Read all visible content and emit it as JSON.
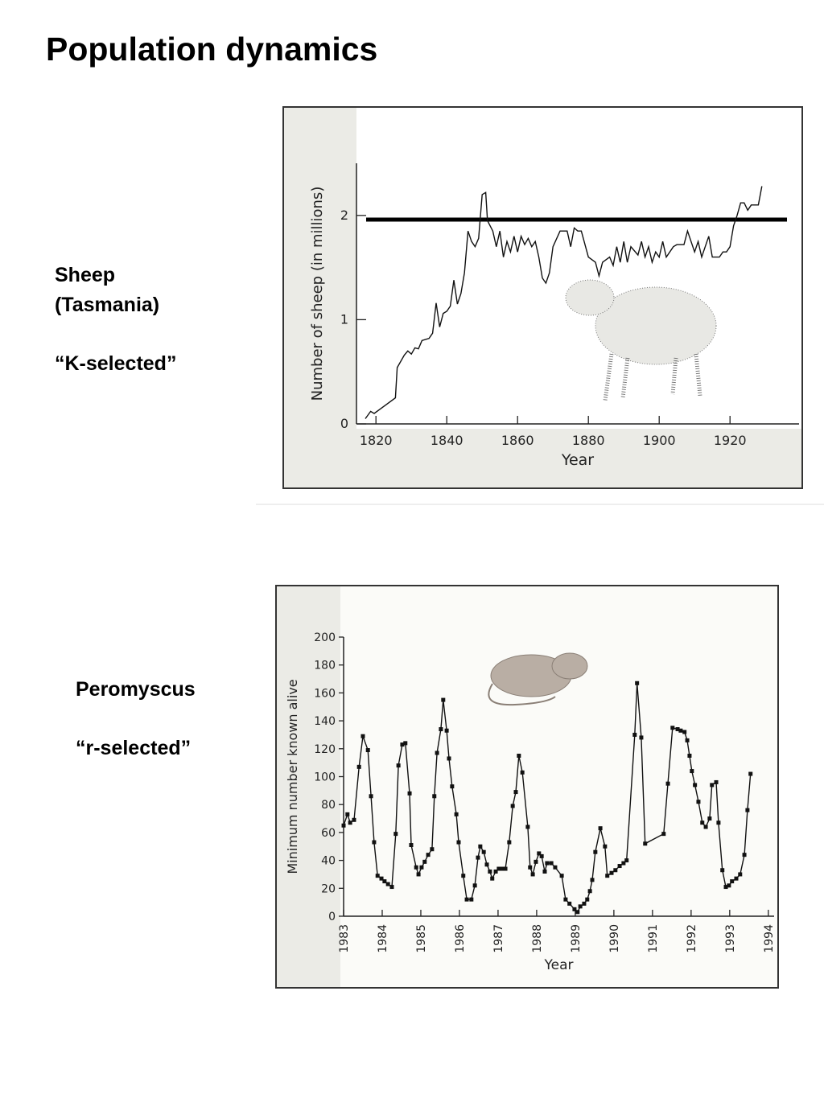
{
  "title": "Population dynamics",
  "panels": [
    {
      "label_lines": [
        "Sheep",
        "(Tasmania)"
      ],
      "note": "“K-selected”"
    },
    {
      "label_lines": [
        "Peromyscus"
      ],
      "note": "“r-selected”"
    }
  ],
  "chart_data": [
    {
      "type": "line",
      "xlabel": "Year",
      "ylabel": "Number of sheep (in millions)",
      "color": "#111111",
      "xlim": [
        1814.5,
        1939.5
      ],
      "ylim": [
        0,
        2.5
      ],
      "xticks": [
        1820,
        1840,
        1860,
        1880,
        1900,
        1920
      ],
      "yticks": [
        0,
        1,
        2
      ],
      "hline": 1.96,
      "x": [
        1817,
        1818.5,
        1819.5,
        1825.5,
        1826,
        1828,
        1829,
        1830,
        1831,
        1832,
        1833,
        1835,
        1836,
        1837,
        1838,
        1839,
        1840,
        1841,
        1842,
        1843,
        1844,
        1845,
        1846,
        1847,
        1848,
        1849,
        1850,
        1851,
        1851.5,
        1853,
        1854,
        1855,
        1856,
        1857,
        1858,
        1859,
        1860,
        1861,
        1862,
        1863,
        1864,
        1865,
        1866,
        1867,
        1868,
        1869,
        1870,
        1872,
        1874,
        1875,
        1876,
        1877,
        1878,
        1880,
        1882,
        1883,
        1884,
        1886,
        1887,
        1888,
        1889,
        1890,
        1891,
        1892,
        1894,
        1895,
        1896,
        1897,
        1898,
        1899,
        1900,
        1901,
        1902,
        1904,
        1905,
        1907,
        1908,
        1910,
        1911,
        1912,
        1914,
        1915,
        1917,
        1918,
        1919,
        1920,
        1921,
        1922,
        1923,
        1924,
        1925,
        1926,
        1927,
        1928,
        1929
      ],
      "values": [
        0.05,
        0.12,
        0.1,
        0.25,
        0.54,
        0.66,
        0.7,
        0.67,
        0.73,
        0.72,
        0.8,
        0.82,
        0.87,
        1.16,
        0.93,
        1.06,
        1.08,
        1.13,
        1.38,
        1.15,
        1.25,
        1.45,
        1.85,
        1.75,
        1.7,
        1.78,
        2.2,
        2.22,
        1.95,
        1.85,
        1.7,
        1.85,
        1.6,
        1.75,
        1.65,
        1.8,
        1.65,
        1.8,
        1.72,
        1.78,
        1.7,
        1.75,
        1.6,
        1.4,
        1.35,
        1.45,
        1.7,
        1.85,
        1.85,
        1.7,
        1.88,
        1.85,
        1.85,
        1.6,
        1.55,
        1.42,
        1.55,
        1.6,
        1.52,
        1.7,
        1.55,
        1.75,
        1.55,
        1.7,
        1.62,
        1.75,
        1.6,
        1.7,
        1.55,
        1.65,
        1.6,
        1.75,
        1.6,
        1.7,
        1.72,
        1.72,
        1.85,
        1.65,
        1.75,
        1.6,
        1.8,
        1.6,
        1.6,
        1.65,
        1.65,
        1.7,
        1.9,
        2.0,
        2.12,
        2.12,
        2.05,
        2.1,
        2.1,
        2.1,
        2.28
      ]
    },
    {
      "type": "line",
      "xlabel": "Year",
      "ylabel": "Minimum number known alive",
      "color": "#111111",
      "markers": "square",
      "xlim": [
        1983,
        1994.15
      ],
      "ylim": [
        0,
        200
      ],
      "xticks": [
        1983,
        1984,
        1985,
        1986,
        1987,
        1988,
        1989,
        1990,
        1991,
        1992,
        1993,
        1994
      ],
      "yticks": [
        0,
        20,
        40,
        60,
        80,
        100,
        120,
        140,
        160,
        180,
        200
      ],
      "x": [
        1983.0,
        1983.1,
        1983.17,
        1983.27,
        1983.4,
        1983.5,
        1983.63,
        1983.71,
        1983.79,
        1983.88,
        1983.98,
        1984.06,
        1984.15,
        1984.25,
        1984.35,
        1984.42,
        1984.52,
        1984.6,
        1984.71,
        1984.75,
        1984.88,
        1984.94,
        1985.02,
        1985.1,
        1985.19,
        1985.29,
        1985.35,
        1985.42,
        1985.52,
        1985.58,
        1985.67,
        1985.73,
        1985.81,
        1985.92,
        1985.98,
        1986.1,
        1986.19,
        1986.31,
        1986.4,
        1986.48,
        1986.54,
        1986.63,
        1986.71,
        1986.79,
        1986.85,
        1986.94,
        1987.02,
        1987.1,
        1987.19,
        1987.29,
        1987.38,
        1987.46,
        1987.54,
        1987.63,
        1987.77,
        1987.83,
        1987.9,
        1987.98,
        1988.06,
        1988.13,
        1988.21,
        1988.27,
        1988.38,
        1988.48,
        1988.65,
        1988.75,
        1988.85,
        1988.98,
        1989.06,
        1989.13,
        1989.23,
        1989.31,
        1989.38,
        1989.44,
        1989.52,
        1989.65,
        1989.77,
        1989.83,
        1989.94,
        1990.04,
        1990.15,
        1990.25,
        1990.33,
        1990.54,
        1990.6,
        1990.71,
        1990.81,
        1991.29,
        1991.4,
        1991.52,
        1991.65,
        1991.73,
        1991.83,
        1991.9,
        1991.96,
        1992.02,
        1992.1,
        1992.19,
        1992.29,
        1992.38,
        1992.48,
        1992.54,
        1992.65,
        1992.71,
        1992.81,
        1992.9,
        1992.98,
        1993.06,
        1993.17,
        1993.27,
        1993.38,
        1993.46,
        1993.54
      ],
      "values": [
        65,
        73,
        67,
        69,
        107,
        129,
        119,
        86,
        53,
        29,
        27,
        25,
        23,
        21,
        59,
        108,
        123,
        124,
        88,
        51,
        35,
        30,
        35,
        39,
        44,
        48,
        86,
        117,
        134,
        155,
        133,
        113,
        93,
        73,
        53,
        29,
        12,
        12,
        22,
        42,
        50,
        46,
        37,
        32,
        27,
        32,
        34,
        34,
        34,
        53,
        79,
        89,
        115,
        103,
        64,
        35,
        30,
        39,
        45,
        43,
        32,
        38,
        38,
        35,
        29,
        12,
        9,
        5,
        3,
        7,
        9,
        12,
        18,
        26,
        46,
        63,
        50,
        29,
        31,
        33,
        36,
        38,
        40,
        130,
        167,
        128,
        52,
        59,
        95,
        135,
        134,
        133,
        132,
        126,
        115,
        104,
        94,
        82,
        67,
        64,
        70,
        94,
        96,
        67,
        33,
        21,
        22,
        25,
        27,
        30,
        44,
        76,
        102
      ]
    }
  ]
}
